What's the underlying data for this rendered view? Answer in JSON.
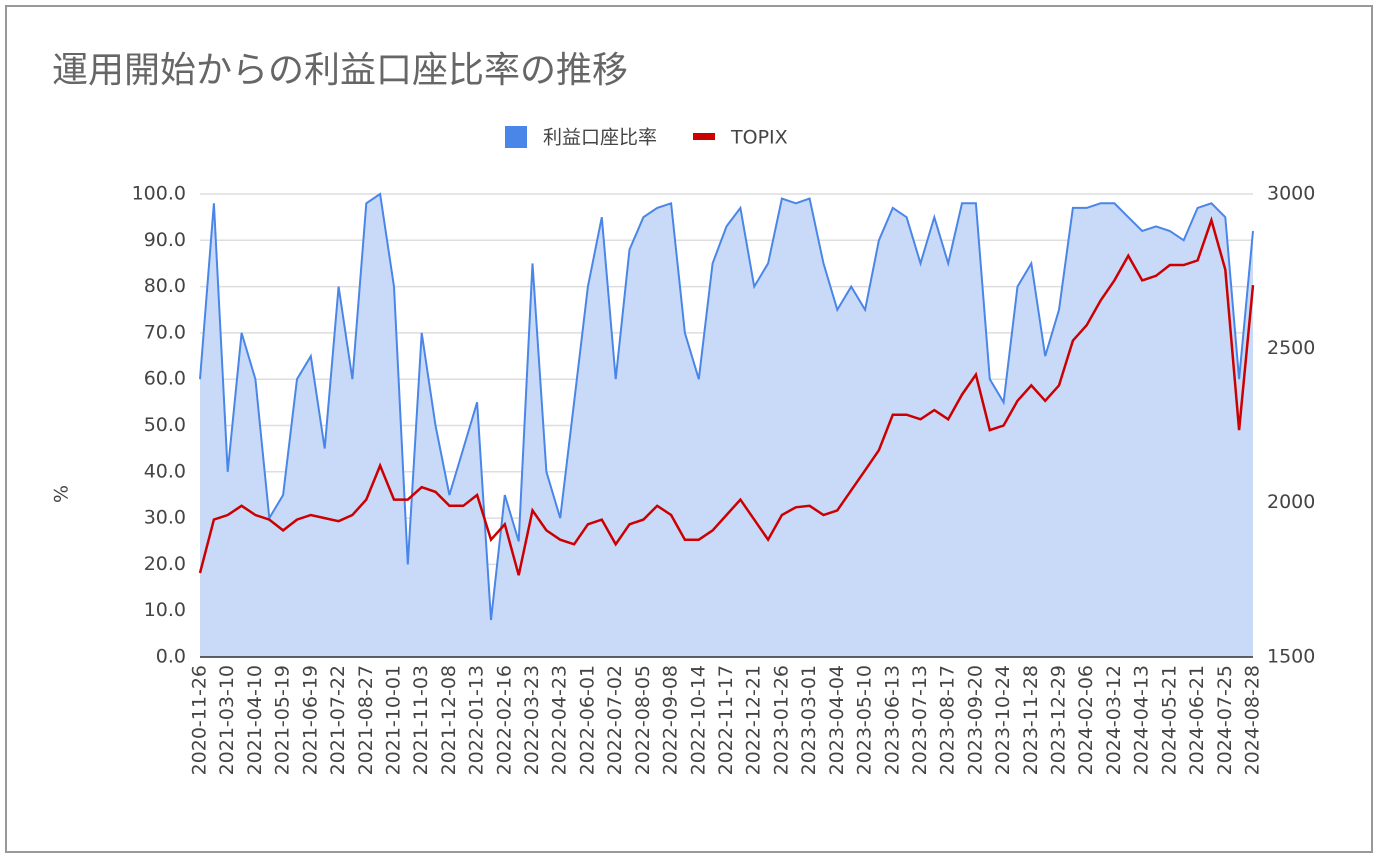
{
  "chart_data": {
    "type": "combo",
    "title": "運用開始からの利益口座比率の推移",
    "ylabel": "%",
    "categories": [
      "2020-11-26",
      null,
      "2021-03-10",
      null,
      "2021-04-10",
      null,
      "2021-05-19",
      null,
      "2021-06-19",
      null,
      "2021-07-22",
      null,
      "2021-08-27",
      null,
      "2021-10-01",
      null,
      "2021-11-03",
      null,
      "2021-12-08",
      null,
      "2022-01-13",
      null,
      "2022-02-16",
      null,
      "2022-03-23",
      null,
      "2022-04-23",
      null,
      "2022-06-01",
      null,
      "2022-07-02",
      null,
      "2022-08-05",
      null,
      "2022-09-08",
      null,
      "2022-10-14",
      null,
      "2022-11-17",
      null,
      "2022-12-21",
      null,
      "2023-01-26",
      null,
      "2023-03-01",
      null,
      "2023-04-04",
      null,
      "2023-05-10",
      null,
      "2023-06-13",
      null,
      "2023-07-13",
      null,
      "2023-08-17",
      null,
      "2023-09-20",
      null,
      "2023-10-24",
      null,
      "2023-11-28",
      null,
      "2023-12-29",
      null,
      "2024-02-06",
      null,
      "2024-03-12",
      null,
      "2024-04-13",
      null,
      "2024-05-21",
      null,
      "2024-06-21",
      null,
      "2024-07-25",
      null,
      "2024-08-28"
    ],
    "series": [
      {
        "name": "利益口座比率",
        "type": "area",
        "color": "#4a86e8",
        "fill": "#c9daf8",
        "values": [
          60,
          98,
          40,
          70,
          60,
          30,
          35,
          60,
          65,
          45,
          80,
          60,
          98,
          100,
          80,
          20,
          70,
          50,
          35,
          45,
          55,
          8,
          35,
          25,
          85,
          40,
          30,
          55,
          80,
          95,
          60,
          88,
          95,
          97,
          98,
          70,
          60,
          85,
          93,
          97,
          80,
          85,
          99,
          98,
          99,
          85,
          75,
          80,
          75,
          90,
          97,
          95,
          85,
          95,
          85,
          98,
          98,
          60,
          55,
          80,
          85,
          65,
          75,
          97,
          97,
          98,
          98,
          95,
          92,
          93,
          92,
          90,
          97,
          98,
          95,
          60,
          92
        ]
      },
      {
        "name": "TOPIX",
        "type": "line",
        "axis": "y2",
        "color": "#cc0000",
        "values": [
          1772,
          1945,
          1960,
          1990,
          1960,
          1945,
          1910,
          1945,
          1960,
          1950,
          1940,
          1960,
          2010,
          2120,
          2010,
          2010,
          2050,
          2035,
          1990,
          1990,
          2025,
          1880,
          1930,
          1765,
          1975,
          1910,
          1880,
          1865,
          1930,
          1945,
          1865,
          1930,
          1945,
          1990,
          1960,
          1880,
          1880,
          1910,
          1960,
          2010,
          1945,
          1880,
          1960,
          1985,
          1990,
          1960,
          1975,
          2040,
          2105,
          2170,
          2285,
          2285,
          2270,
          2300,
          2270,
          2350,
          2415,
          2235,
          2250,
          2330,
          2380,
          2330,
          2380,
          2525,
          2575,
          2655,
          2720,
          2800,
          2720,
          2735,
          2770,
          2770,
          2785,
          2915,
          2755,
          2235,
          2705
        ]
      }
    ],
    "ylim": [
      0,
      100
    ],
    "yticks": [
      {
        "value": 0,
        "label": "0.0"
      },
      {
        "value": 10,
        "label": "10.0"
      },
      {
        "value": 20,
        "label": "20.0"
      },
      {
        "value": 30,
        "label": "30.0"
      },
      {
        "value": 40,
        "label": "40.0"
      },
      {
        "value": 50,
        "label": "50.0"
      },
      {
        "value": 60,
        "label": "60.0"
      },
      {
        "value": 70,
        "label": "70.0"
      },
      {
        "value": 80,
        "label": "80.0"
      },
      {
        "value": 90,
        "label": "90.0"
      },
      {
        "value": 100,
        "label": "100.0"
      }
    ],
    "y2lim": [
      1500,
      3000
    ],
    "y2ticks": [
      1500,
      2000,
      2500,
      3000
    ],
    "grid": true,
    "legend": "top"
  }
}
